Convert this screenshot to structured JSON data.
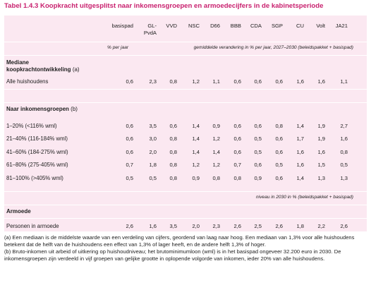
{
  "title": "Tabel 1.4.3 Koopkracht uitgesplitst naar inkomensgroepen en armoedecijfers in de kabinetsperiode",
  "columns": [
    "basispad",
    "GL-\nPvdA",
    "VVD",
    "NSC",
    "D66",
    "BBB",
    "CDA",
    "SGP",
    "CU",
    "Volt",
    "JA21"
  ],
  "columns_line1": [
    "basispad",
    "GL-",
    "VVD",
    "NSC",
    "D66",
    "BBB",
    "CDA",
    "SGP",
    "CU",
    "Volt",
    "JA21"
  ],
  "columns_line2": [
    "",
    "PvdA",
    "",
    "",
    "",
    "",
    "",
    "",
    "",
    "",
    ""
  ],
  "unit_row1": {
    "left": "% per jaar",
    "right": "gemiddelde verandering in % per jaar, 2027–2030 (beleidspakket + basispad)"
  },
  "section1": {
    "title_line1": "Mediane",
    "title_line2": "koopkrachtontwikkeling",
    "note": "(a)",
    "rows": [
      {
        "label": "Alle huishoudens",
        "values": [
          "0,6",
          "2,3",
          "0,8",
          "1,2",
          "1,1",
          "0,6",
          "0,6",
          "0,6",
          "1,6",
          "1,6",
          "1,1"
        ]
      }
    ]
  },
  "section2": {
    "title": "Naar inkomensgroepen",
    "note": "(b)",
    "rows": [
      {
        "label": "1–20% (<116% wml)",
        "values": [
          "0,6",
          "3,5",
          "0,6",
          "1,4",
          "0,9",
          "0,6",
          "0,6",
          "0,8",
          "1,4",
          "1,9",
          "2,7"
        ]
      },
      {
        "label": "21–40% (116-184% wml)",
        "values": [
          "0,6",
          "3,0",
          "0,8",
          "1,4",
          "1,2",
          "0,6",
          "0,5",
          "0,6",
          "1,7",
          "1,9",
          "1,6"
        ]
      },
      {
        "label": "41–60% (184-275% wml)",
        "values": [
          "0,6",
          "2,0",
          "0,8",
          "1,4",
          "1,4",
          "0,6",
          "0,5",
          "0,6",
          "1,6",
          "1,6",
          "0,8"
        ]
      },
      {
        "label": "61–80% (275-405% wml)",
        "values": [
          "0,7",
          "1,8",
          "0,8",
          "1,2",
          "1,2",
          "0,7",
          "0,6",
          "0,5",
          "1,6",
          "1,5",
          "0,5"
        ]
      },
      {
        "label": "81–100% (>405% wml)",
        "values": [
          "0,5",
          "0,5",
          "0,8",
          "0,9",
          "0,8",
          "0,8",
          "0,9",
          "0,6",
          "1,4",
          "1,3",
          "1,3"
        ]
      }
    ]
  },
  "unit_row2": "niveau in 2030 in % (beleidspakket + basispad)",
  "section3": {
    "title": "Armoede",
    "rows": [
      {
        "label": "Personen in armoede",
        "values": [
          "2,6",
          "1,6",
          "3,5",
          "2,0",
          "2,3",
          "2,6",
          "2,5",
          "2,6",
          "1,8",
          "2,2",
          "2,6"
        ]
      }
    ]
  },
  "notes": [
    "(a) Een mediaan is de middelste waarde van een verdeling van cijfers, geordend van laag naar hoog. Een mediaan van 1,3% voor alle huishoudens betekent dat de helft van de huishoudens een effect van 1,3% of lager heeft, en de andere helft 1,3% of hoger.",
    "(b) Bruto-inkomen uit arbeid of uitkering op huishoudniveau; het brutominimumloon (wml) is in het basispad ongeveer 32.200 euro in 2030. De inkomensgroepen zijn verdeeld in vijf groepen van gelijke grootte in oplopende volgorde van inkomen, ieder 20% van alle huishoudens."
  ],
  "colors": {
    "accent": "#c8206e",
    "panel": "#fbe8f1"
  }
}
